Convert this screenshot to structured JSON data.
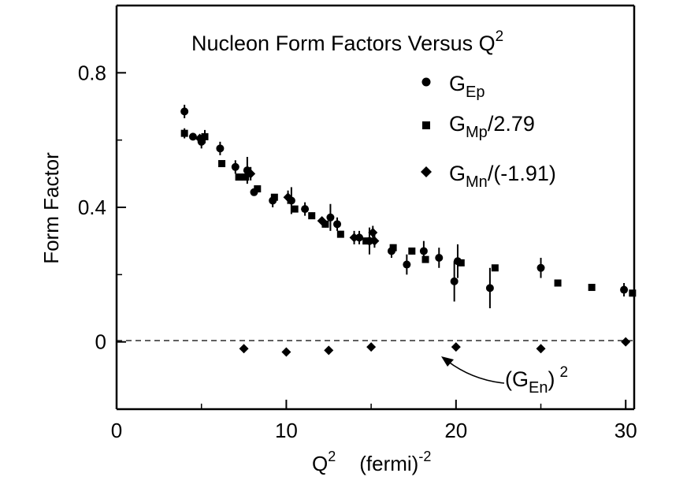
{
  "chart_data": {
    "type": "scatter",
    "title": {
      "main": "Nucleon Form Factors Versus Q",
      "sup": "2"
    },
    "xlabel": {
      "main": "Q",
      "sup": "2",
      "unit": "(fermi)",
      "unit_sup": "-2"
    },
    "ylabel": "Form Factor",
    "xlim": [
      0,
      30.5
    ],
    "ylim": [
      -0.2,
      1.0
    ],
    "x_ticks": [
      0,
      10,
      20,
      30
    ],
    "y_ticks": [
      0,
      0.4,
      0.8
    ],
    "y_tick_labels": [
      "0",
      "0.4",
      "0.8"
    ],
    "zero_line": "dashed",
    "series": [
      {
        "name": {
          "base": "G",
          "sub": "Ep",
          "tail": ""
        },
        "marker": "circle",
        "points": [
          {
            "x": 4.0,
            "y": 0.685,
            "err": 0.02
          },
          {
            "x": 4.5,
            "y": 0.61,
            "err": 0.01
          },
          {
            "x": 5.0,
            "y": 0.595,
            "err": 0.02
          },
          {
            "x": 6.1,
            "y": 0.575,
            "err": 0.02
          },
          {
            "x": 7.0,
            "y": 0.52,
            "err": 0.02
          },
          {
            "x": 7.7,
            "y": 0.51,
            "err": 0.04
          },
          {
            "x": 8.1,
            "y": 0.445,
            "err": 0.01
          },
          {
            "x": 9.2,
            "y": 0.42,
            "err": 0.02
          },
          {
            "x": 10.3,
            "y": 0.42,
            "err": 0.04
          },
          {
            "x": 11.1,
            "y": 0.395,
            "err": 0.02
          },
          {
            "x": 12.6,
            "y": 0.37,
            "err": 0.04
          },
          {
            "x": 13.0,
            "y": 0.35,
            "err": 0.02
          },
          {
            "x": 14.3,
            "y": 0.31,
            "err": 0.02
          },
          {
            "x": 14.9,
            "y": 0.3,
            "err": 0.04
          },
          {
            "x": 16.2,
            "y": 0.27,
            "err": 0.02
          },
          {
            "x": 17.1,
            "y": 0.23,
            "err": 0.03
          },
          {
            "x": 18.1,
            "y": 0.27,
            "err": 0.03
          },
          {
            "x": 19.0,
            "y": 0.25,
            "err": 0.03
          },
          {
            "x": 20.1,
            "y": 0.24,
            "err": 0.05
          },
          {
            "x": 19.9,
            "y": 0.18,
            "err": 0.06
          },
          {
            "x": 22.0,
            "y": 0.16,
            "err": 0.06
          },
          {
            "x": 25.0,
            "y": 0.22,
            "err": 0.03
          },
          {
            "x": 29.9,
            "y": 0.155,
            "err": 0.02
          }
        ]
      },
      {
        "name": {
          "base": "G",
          "sub": "Mp",
          "tail": "/2.79"
        },
        "marker": "square",
        "points": [
          {
            "x": 4.0,
            "y": 0.62,
            "err": 0.015
          },
          {
            "x": 5.2,
            "y": 0.61,
            "err": 0.02
          },
          {
            "x": 6.2,
            "y": 0.53,
            "err": 0.01
          },
          {
            "x": 7.2,
            "y": 0.49,
            "err": 0.01
          },
          {
            "x": 7.6,
            "y": 0.49,
            "err": 0.01
          },
          {
            "x": 8.3,
            "y": 0.455,
            "err": 0.01
          },
          {
            "x": 9.3,
            "y": 0.43,
            "err": 0.01
          },
          {
            "x": 10.5,
            "y": 0.395,
            "err": 0.01
          },
          {
            "x": 11.5,
            "y": 0.375,
            "err": 0.01
          },
          {
            "x": 12.3,
            "y": 0.35,
            "err": 0.01
          },
          {
            "x": 13.2,
            "y": 0.32,
            "err": 0.01
          },
          {
            "x": 14.7,
            "y": 0.3,
            "err": 0.01
          },
          {
            "x": 16.3,
            "y": 0.28,
            "err": 0.01
          },
          {
            "x": 17.4,
            "y": 0.27,
            "err": 0.01
          },
          {
            "x": 18.2,
            "y": 0.245,
            "err": 0.01
          },
          {
            "x": 20.3,
            "y": 0.235,
            "err": 0.01
          },
          {
            "x": 22.3,
            "y": 0.22,
            "err": 0.01
          },
          {
            "x": 26.0,
            "y": 0.175,
            "err": 0.01
          },
          {
            "x": 28.0,
            "y": 0.162,
            "err": 0.01
          },
          {
            "x": 30.4,
            "y": 0.145,
            "err": 0.01
          }
        ]
      },
      {
        "name": {
          "base": "G",
          "sub": "Mn",
          "tail": "/(-1.91)"
        },
        "marker": "diamond",
        "points": [
          {
            "x": 4.9,
            "y": 0.605,
            "err": 0.01
          },
          {
            "x": 7.9,
            "y": 0.5,
            "err": 0.02
          },
          {
            "x": 10.1,
            "y": 0.43,
            "err": 0.02
          },
          {
            "x": 12.1,
            "y": 0.36,
            "err": 0.01
          },
          {
            "x": 14.0,
            "y": 0.31,
            "err": 0.02
          },
          {
            "x": 15.2,
            "y": 0.3,
            "err": 0.02
          },
          {
            "x": 15.1,
            "y": 0.325,
            "err": 0.02
          }
        ]
      },
      {
        "name": {
          "base": "(G",
          "sub": "En",
          "tail": ")",
          "sup": "2"
        },
        "marker": "diamond",
        "annotation": true,
        "points": [
          {
            "x": 7.5,
            "y": -0.02
          },
          {
            "x": 10.0,
            "y": -0.03
          },
          {
            "x": 12.5,
            "y": -0.025
          },
          {
            "x": 15.0,
            "y": -0.015
          },
          {
            "x": 20.0,
            "y": -0.015
          },
          {
            "x": 25.0,
            "y": -0.02
          },
          {
            "x": 30.0,
            "y": 0.0
          }
        ]
      }
    ]
  }
}
